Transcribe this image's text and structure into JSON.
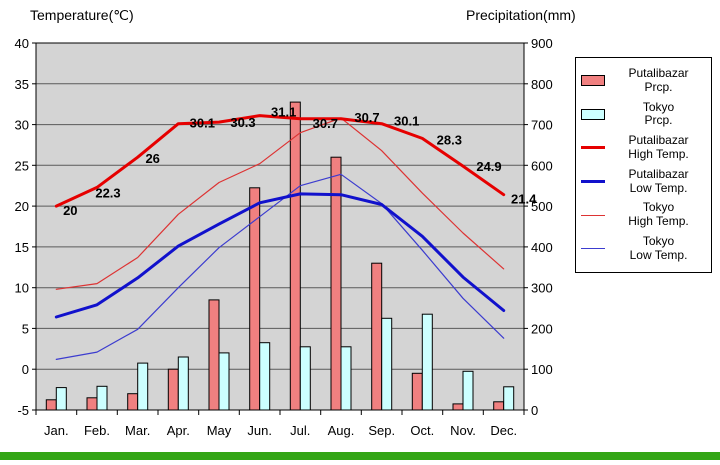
{
  "axes": {
    "left_title": "Temperature(℃)",
    "right_title": "Precipitation(mm)"
  },
  "colors": {
    "plot_bg": "#d4d4d4",
    "grid": "#5a5a5a",
    "bar_stroke": "#000000",
    "putalibazar_prcp": "#f08080",
    "tokyo_prcp": "#ccffff",
    "putalibazar_high": "#e60000",
    "putalibazar_low": "#1111cc",
    "tokyo_high": "#dd3333",
    "tokyo_low": "#3c3ccf",
    "footer_green": "#33a516"
  },
  "chart_data": {
    "type": "bar",
    "subtype": "climate chart: monthly precipitation bars + temperature lines, dual axis",
    "categories": [
      "Jan.",
      "Feb.",
      "Mar.",
      "Apr.",
      "May",
      "Jun.",
      "Jul.",
      "Aug.",
      "Sep.",
      "Oct.",
      "Nov.",
      "Dec."
    ],
    "temp_axis": {
      "label": "Temperature(℃)",
      "min": -5,
      "max": 40,
      "step": 5,
      "ticks": [
        40,
        35,
        30,
        25,
        20,
        15,
        10,
        5,
        0,
        -5
      ]
    },
    "precip_axis": {
      "label": "Precipitation(mm)",
      "min": 0,
      "max": 900,
      "step": 100,
      "ticks": [
        900,
        800,
        700,
        600,
        500,
        400,
        300,
        200,
        100,
        0
      ]
    },
    "grid": "horizontal",
    "legend_position": "right",
    "series": [
      {
        "name": "Putalibazar Prcp.",
        "type": "bar",
        "axis": "precip",
        "color_key": "putalibazar_prcp",
        "values": [
          25,
          30,
          40,
          100,
          270,
          545,
          755,
          620,
          360,
          90,
          15,
          20
        ]
      },
      {
        "name": "Tokyo Prcp.",
        "type": "bar",
        "axis": "precip",
        "color_key": "tokyo_prcp",
        "values": [
          55,
          58,
          115,
          130,
          140,
          165,
          155,
          155,
          225,
          235,
          95,
          57
        ]
      },
      {
        "name": "Tokyo High Temp.",
        "type": "line",
        "axis": "temp",
        "width": 1.2,
        "color_key": "tokyo_high",
        "values": [
          9.8,
          10.5,
          13.7,
          19.0,
          22.9,
          25.2,
          29.0,
          30.8,
          26.8,
          21.6,
          16.7,
          12.3
        ]
      },
      {
        "name": "Tokyo Low Temp.",
        "type": "line",
        "axis": "temp",
        "width": 1.2,
        "color_key": "tokyo_low",
        "values": [
          1.2,
          2.1,
          4.9,
          10.0,
          14.9,
          18.7,
          22.5,
          23.9,
          20.3,
          14.6,
          8.7,
          3.8
        ]
      },
      {
        "name": "Putalibazar Low Temp.",
        "type": "line",
        "axis": "temp",
        "width": 3,
        "color_key": "putalibazar_low",
        "values": [
          6.4,
          7.9,
          11.2,
          15.1,
          17.8,
          20.4,
          21.5,
          21.4,
          20.2,
          16.3,
          11.3,
          7.2
        ]
      },
      {
        "name": "Putalibazar High Temp.",
        "type": "line",
        "axis": "temp",
        "width": 3,
        "color_key": "putalibazar_high",
        "values": [
          20,
          22.3,
          26,
          30.1,
          30.3,
          31.1,
          30.7,
          30.7,
          30.1,
          28.3,
          24.9,
          21.4
        ],
        "point_labels": [
          "20",
          "22.3",
          "26",
          "30.1",
          "30.3",
          "31.1",
          "30.7",
          "30.7",
          "30.1",
          "28.3",
          "24.9",
          "21.4"
        ]
      }
    ]
  },
  "legend": {
    "items": [
      {
        "line1": "Putalibazar",
        "line2": "Prcp.",
        "swatch": "putalibazar-prcp"
      },
      {
        "line1": "Tokyo",
        "line2": "Prcp.",
        "swatch": "tokyo-prcp"
      },
      {
        "line1": "Putalibazar",
        "line2": "High Temp.",
        "swatch": "putalibazar-high"
      },
      {
        "line1": "Putalibazar",
        "line2": "Low Temp.",
        "swatch": "putalibazar-low"
      },
      {
        "line1": "Tokyo",
        "line2": "High Temp.",
        "swatch": "tokyo-high"
      },
      {
        "line1": "Tokyo",
        "line2": "Low Temp.",
        "swatch": "tokyo-low"
      }
    ]
  }
}
